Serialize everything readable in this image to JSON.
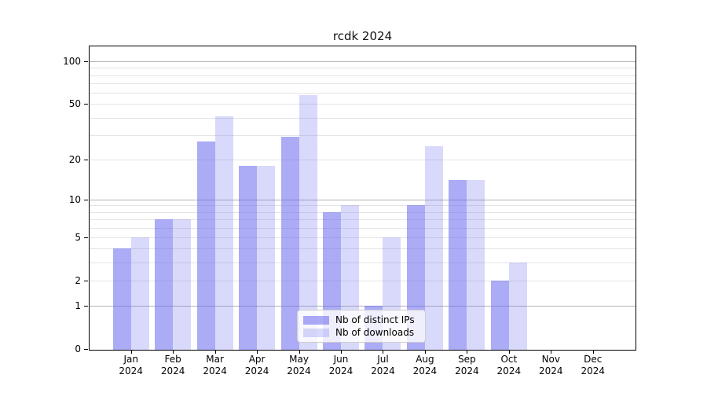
{
  "chart_data": {
    "type": "bar",
    "title": "rcdk 2024",
    "categories": [
      [
        "Jan",
        "2024"
      ],
      [
        "Feb",
        "2024"
      ],
      [
        "Mar",
        "2024"
      ],
      [
        "Apr",
        "2024"
      ],
      [
        "May",
        "2024"
      ],
      [
        "Jun",
        "2024"
      ],
      [
        "Jul",
        "2024"
      ],
      [
        "Aug",
        "2024"
      ],
      [
        "Sep",
        "2024"
      ],
      [
        "Oct",
        "2024"
      ],
      [
        "Nov",
        "2024"
      ],
      [
        "Dec",
        "2024"
      ]
    ],
    "series": [
      {
        "name": "Nb of distinct IPs",
        "values": [
          4,
          7,
          27,
          18,
          29,
          8,
          1,
          9,
          14,
          2,
          0,
          0
        ],
        "color": "#6666ee",
        "alpha": 0.55
      },
      {
        "name": "Nb of downloads",
        "values": [
          5,
          7,
          41,
          18,
          58,
          9,
          5,
          25,
          14,
          3,
          0,
          0
        ],
        "color": "#6666ee",
        "alpha": 0.25
      }
    ],
    "xlabel": "",
    "ylabel": "",
    "y_scale": "log1p",
    "ylim": [
      0,
      130
    ],
    "y_ticks": [
      0,
      1,
      2,
      5,
      10,
      20,
      50,
      100
    ],
    "y_major_gridlines": [
      1,
      10,
      100
    ],
    "y_minor_gridlines": [
      2,
      3,
      4,
      5,
      6,
      7,
      8,
      9,
      20,
      30,
      40,
      50,
      60,
      70,
      80,
      90
    ],
    "grid": "horizontal",
    "legend_position": "lower center"
  },
  "colors": {
    "background": "#ffffff",
    "bar_base": "#6666ee",
    "major_grid": "#b3b3b3",
    "minor_grid": "#e4e4e4",
    "axis": "#000000",
    "legend_border": "#cccccc"
  }
}
